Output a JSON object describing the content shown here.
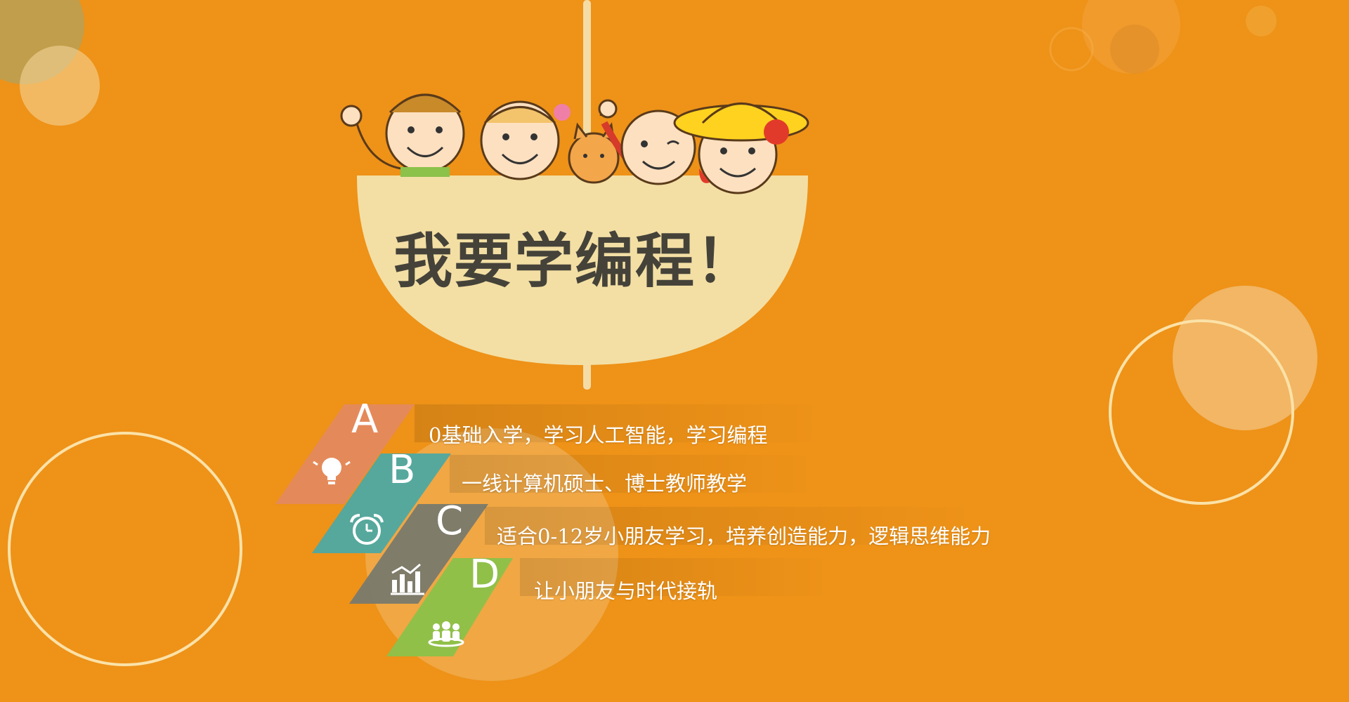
{
  "title": "我要学编程！",
  "colors": {
    "background": "#ee9218",
    "bowl": "#f3dfa4",
    "title_text": "#454239",
    "segment_a": "#e48a5a",
    "segment_b": "#4fa8a1",
    "segment_c": "#7a7a6c",
    "segment_d": "#8cc14a"
  },
  "features": [
    {
      "letter": "A",
      "text": "0基础入学，学习人工智能，学习编程",
      "icon": "lightbulb-icon"
    },
    {
      "letter": "B",
      "text": "一线计算机硕士、博士教师教学",
      "icon": "alarm-clock-icon"
    },
    {
      "letter": "C",
      "text": "适合0-12岁小朋友学习，培养创造能力，逻辑思维能力",
      "icon": "chart-icon"
    },
    {
      "letter": "D",
      "text": "让小朋友与时代接轨",
      "icon": "people-icon"
    }
  ]
}
